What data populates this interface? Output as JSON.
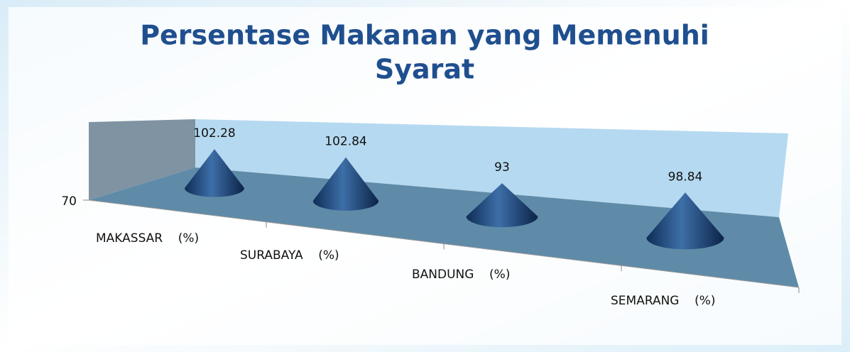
{
  "chart_data": {
    "type": "cone",
    "title": "Persentase Makanan yang Memenuhi Syarat",
    "categories": [
      "MAKASSAR    (%)",
      "SURABAYA    (%)",
      "BANDUNG    (%)",
      "SEMARANG    (%)"
    ],
    "values": [
      102.28,
      102.84,
      93,
      98.84
    ],
    "color": "#1f4e79",
    "ylim": [
      70,
      150
    ],
    "yticks": [
      70
    ]
  }
}
